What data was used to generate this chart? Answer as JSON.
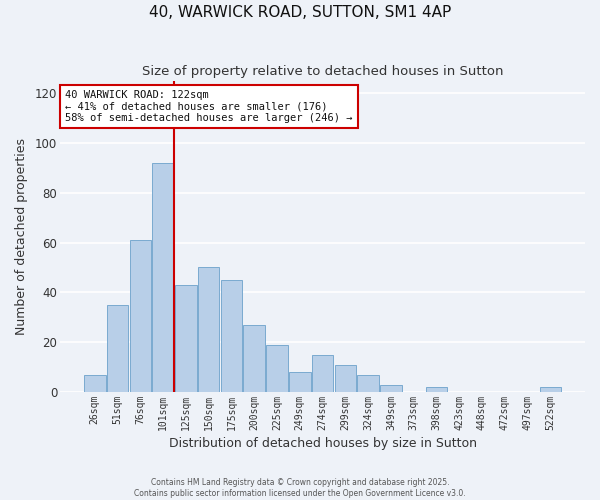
{
  "title": "40, WARWICK ROAD, SUTTON, SM1 4AP",
  "subtitle": "Size of property relative to detached houses in Sutton",
  "xlabel": "Distribution of detached houses by size in Sutton",
  "ylabel": "Number of detached properties",
  "bar_labels": [
    "26sqm",
    "51sqm",
    "76sqm",
    "101sqm",
    "125sqm",
    "150sqm",
    "175sqm",
    "200sqm",
    "225sqm",
    "249sqm",
    "274sqm",
    "299sqm",
    "324sqm",
    "349sqm",
    "373sqm",
    "398sqm",
    "423sqm",
    "448sqm",
    "472sqm",
    "497sqm",
    "522sqm"
  ],
  "bar_values": [
    7,
    35,
    61,
    92,
    43,
    50,
    45,
    27,
    19,
    8,
    15,
    11,
    7,
    3,
    0,
    2,
    0,
    0,
    0,
    0,
    2
  ],
  "bar_color": "#b8cfe8",
  "bar_edgecolor": "#7aaad0",
  "vline_color": "#cc0000",
  "annotation_line1": "40 WARWICK ROAD: 122sqm",
  "annotation_line2": "← 41% of detached houses are smaller (176)",
  "annotation_line3": "58% of semi-detached houses are larger (246) →",
  "annotation_box_edgecolor": "#cc0000",
  "annotation_box_facecolor": "#ffffff",
  "ylim": [
    0,
    125
  ],
  "yticks": [
    0,
    20,
    40,
    60,
    80,
    100,
    120
  ],
  "background_color": "#eef2f8",
  "grid_color": "#ffffff",
  "footer1": "Contains HM Land Registry data © Crown copyright and database right 2025.",
  "footer2": "Contains public sector information licensed under the Open Government Licence v3.0."
}
